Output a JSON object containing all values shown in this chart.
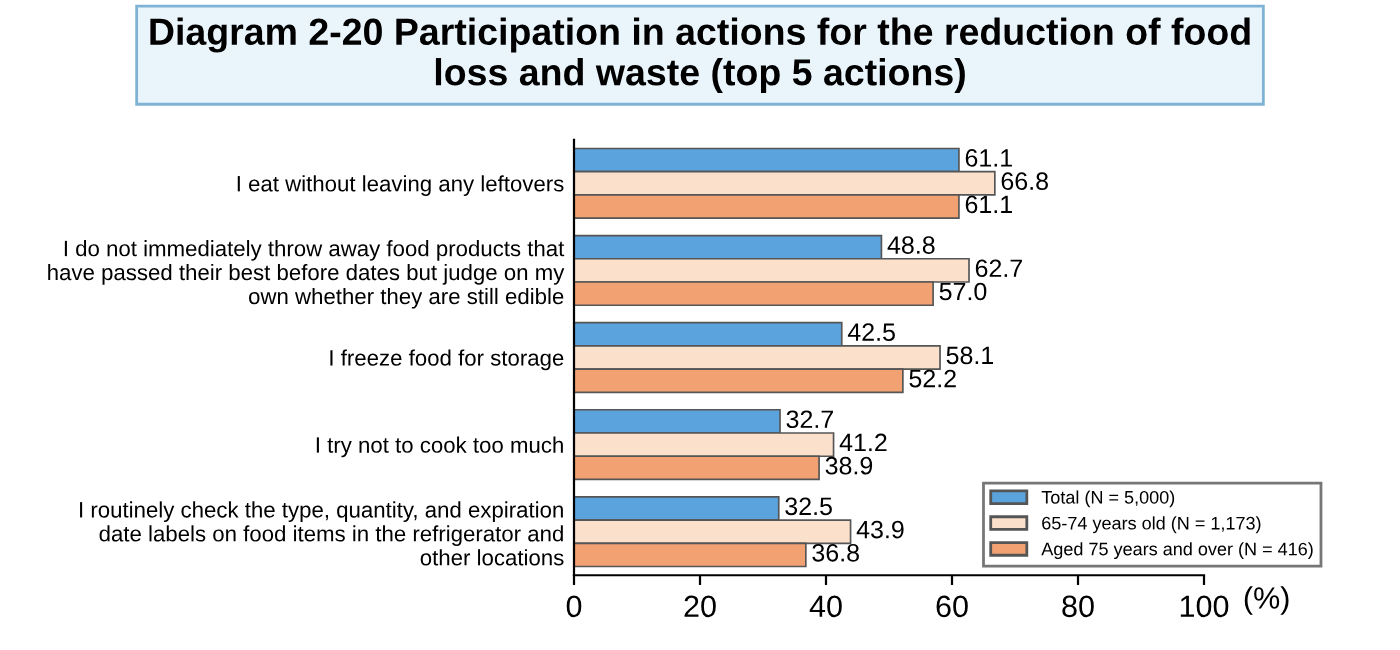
{
  "chart_data": {
    "type": "bar",
    "orientation": "horizontal",
    "title": "Diagram 2-20 Participation in actions for the reduction of food\nloss and waste (top 5 actions)",
    "xlabel": "(%)",
    "categories": [
      "I eat without leaving any leftovers",
      "I do not immediately throw away food products that\nhave passed their best before dates but judge on my\nown whether they are still edible",
      "I freeze food for storage",
      "I try not to cook too much",
      "I routinely check the type, quantity, and expiration\ndate labels on food items in the refrigerator and\nother locations"
    ],
    "series": [
      {
        "name": "Total (N = 5,000)",
        "color": "#5ba3dc",
        "values": [
          61.1,
          48.8,
          42.5,
          32.7,
          32.5
        ],
        "value_labels": [
          "61.1",
          "48.8",
          "42.5",
          "32.7",
          "32.5"
        ]
      },
      {
        "name": "65-74 years old (N = 1,173)",
        "color": "#fbe0cc",
        "values": [
          66.8,
          62.7,
          58.1,
          41.2,
          43.9
        ],
        "value_labels": [
          "66.8",
          "62.7",
          "58.1",
          "41.2",
          "43.9"
        ]
      },
      {
        "name": "Aged 75 years and over (N = 416)",
        "color": "#f2a272",
        "values": [
          61.1,
          57.0,
          52.2,
          38.9,
          36.8
        ],
        "value_labels": [
          "61.1",
          "57.0",
          "52.2",
          "38.9",
          "36.8"
        ]
      }
    ],
    "xlim": [
      0,
      100
    ],
    "xticks": [
      0,
      20,
      40,
      60,
      80,
      100
    ],
    "legend": "bottom right",
    "grid": false
  }
}
